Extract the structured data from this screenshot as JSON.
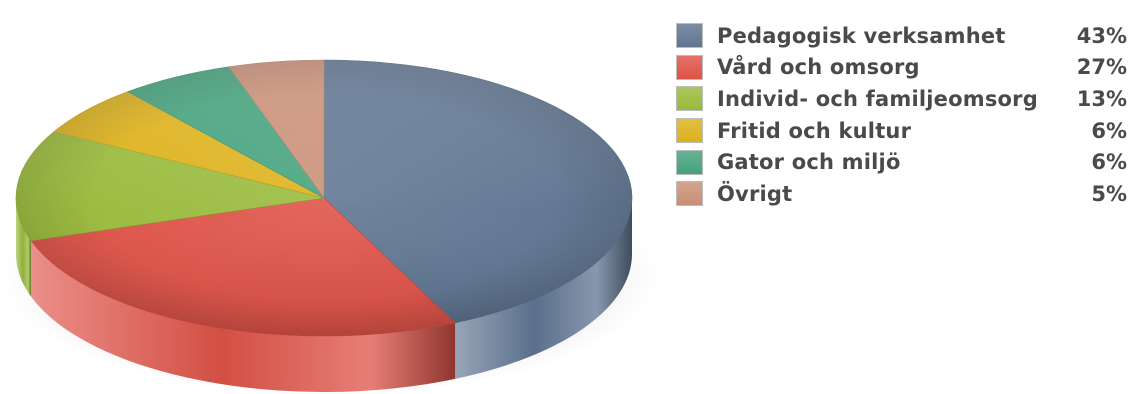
{
  "chart_data": {
    "type": "pie",
    "style": "3d",
    "categories": [
      "Pedagogisk verksamhet",
      "Vård och omsorg",
      "Individ- och familjeomsorg",
      "Fritid och kultur",
      "Gator och miljö",
      "Övrigt"
    ],
    "values": [
      43,
      27,
      13,
      6,
      6,
      5
    ],
    "value_labels": [
      "43%",
      "27%",
      "13%",
      "6%",
      "6%",
      "5%"
    ],
    "colors": [
      "#5f7591",
      "#de5348",
      "#99ba3b",
      "#ddb11a",
      "#43a27c",
      "#c98f76"
    ],
    "legend_position": "right"
  }
}
